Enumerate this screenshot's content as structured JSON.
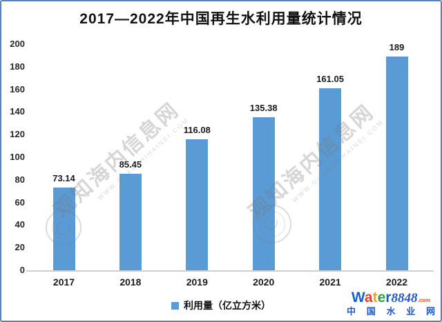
{
  "title": "2017—2022年中国再生水利用量统计情况",
  "chart_data": {
    "type": "bar",
    "title": "2017—2022年中国再生水利用量统计情况",
    "categories": [
      "2017",
      "2018",
      "2019",
      "2020",
      "2021",
      "2022"
    ],
    "values": [
      73.14,
      85.45,
      116.08,
      135.38,
      161.05,
      189
    ],
    "value_labels": [
      "73.14",
      "85.45",
      "116.08",
      "135.38",
      "161.05",
      "189"
    ],
    "xlabel": "",
    "ylabel": "",
    "ylim": [
      0,
      200
    ],
    "y_tick_step": 20,
    "grid": false,
    "legend": "利用量（亿立方米）",
    "legend_position": "bottom-center",
    "bar_color": "#5b9bd5"
  },
  "watermark": {
    "text": "观知海内信息网",
    "subtext": "WWW.GUANZHIHAINEI.COM"
  },
  "brand": {
    "letters": [
      {
        "ch": "W",
        "color": "#1b5ec4"
      },
      {
        "ch": "a",
        "color": "#e23e2b"
      },
      {
        "ch": "t",
        "color": "#f2a51c"
      },
      {
        "ch": "e",
        "color": "#2f9e44"
      },
      {
        "ch": "r",
        "color": "#1b5ec4"
      }
    ],
    "number": "8848",
    "domain": ".com",
    "subtitle": "中国水业网"
  }
}
